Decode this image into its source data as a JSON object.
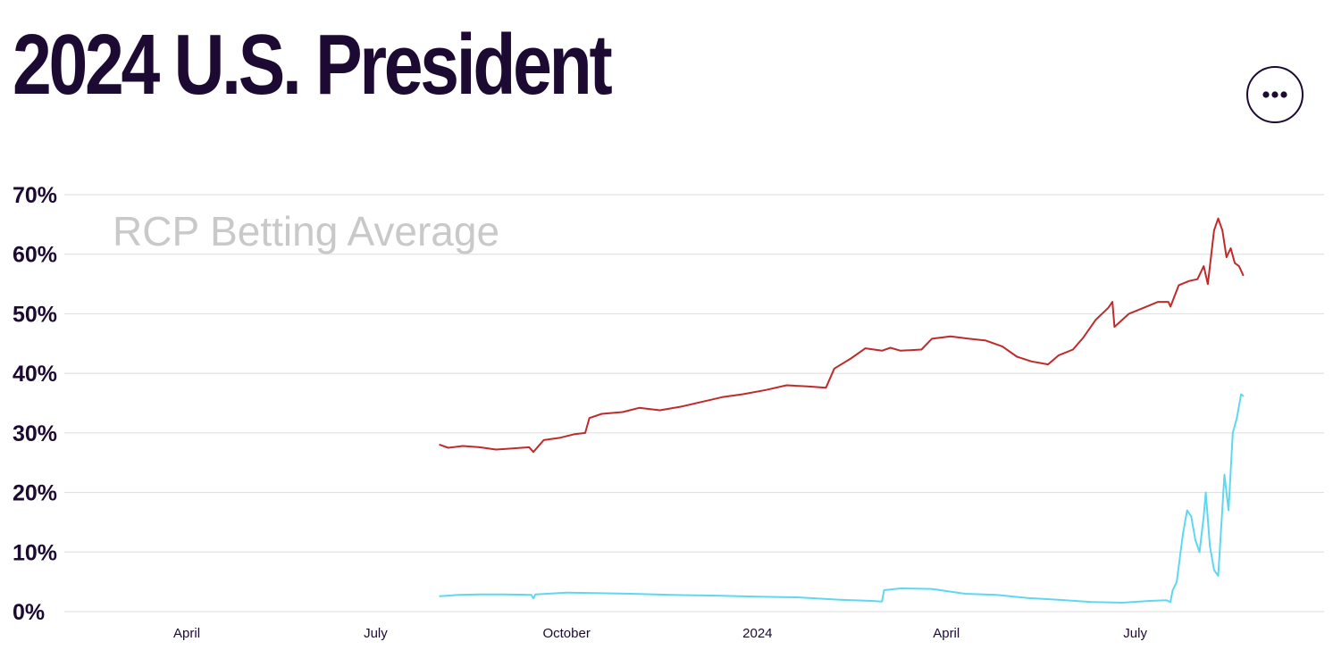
{
  "header": {
    "title": "2024 U.S. President",
    "more_button": {
      "icon": "more-horizontal-icon"
    }
  },
  "chart_data": {
    "type": "line",
    "title": "2024 U.S. President",
    "watermark": "RCP Betting Average",
    "xlabel": "",
    "ylabel": "",
    "ylim": [
      0,
      70
    ],
    "y_ticks": [
      {
        "value": 0,
        "label": "0%"
      },
      {
        "value": 10,
        "label": "10%"
      },
      {
        "value": 20,
        "label": "20%"
      },
      {
        "value": 30,
        "label": "30%"
      },
      {
        "value": 40,
        "label": "40%"
      },
      {
        "value": 50,
        "label": "50%"
      },
      {
        "value": 60,
        "label": "60%"
      },
      {
        "value": 70,
        "label": "70%"
      }
    ],
    "x_range": [
      "2023-02-01",
      "2024-09-30"
    ],
    "x_ticks": [
      {
        "date": "2023-04-01",
        "label": "April"
      },
      {
        "date": "2023-07-01",
        "label": "July"
      },
      {
        "date": "2023-10-01",
        "label": "October"
      },
      {
        "date": "2024-01-01",
        "label": "2024"
      },
      {
        "date": "2024-04-01",
        "label": "April"
      },
      {
        "date": "2024-07-01",
        "label": "July"
      }
    ],
    "grid": true,
    "series": [
      {
        "name": "Red series",
        "color": "#bf2b2b",
        "points": [
          [
            "2023-08-01",
            28.0
          ],
          [
            "2023-08-05",
            27.5
          ],
          [
            "2023-08-12",
            27.8
          ],
          [
            "2023-08-20",
            27.6
          ],
          [
            "2023-08-28",
            27.2
          ],
          [
            "2023-09-05",
            27.4
          ],
          [
            "2023-09-13",
            27.6
          ],
          [
            "2023-09-15",
            26.8
          ],
          [
            "2023-09-20",
            28.8
          ],
          [
            "2023-09-28",
            29.2
          ],
          [
            "2023-10-05",
            29.8
          ],
          [
            "2023-10-10",
            30.0
          ],
          [
            "2023-10-12",
            32.5
          ],
          [
            "2023-10-18",
            33.2
          ],
          [
            "2023-10-28",
            33.5
          ],
          [
            "2023-11-05",
            34.2
          ],
          [
            "2023-11-15",
            33.8
          ],
          [
            "2023-11-25",
            34.4
          ],
          [
            "2023-12-05",
            35.2
          ],
          [
            "2023-12-15",
            36.0
          ],
          [
            "2023-12-25",
            36.5
          ],
          [
            "2024-01-05",
            37.2
          ],
          [
            "2024-01-15",
            38.0
          ],
          [
            "2024-01-25",
            37.8
          ],
          [
            "2024-02-03",
            37.6
          ],
          [
            "2024-02-07",
            40.8
          ],
          [
            "2024-02-15",
            42.5
          ],
          [
            "2024-02-22",
            44.2
          ],
          [
            "2024-03-01",
            43.8
          ],
          [
            "2024-03-05",
            44.3
          ],
          [
            "2024-03-10",
            43.8
          ],
          [
            "2024-03-20",
            44.0
          ],
          [
            "2024-03-25",
            45.8
          ],
          [
            "2024-04-03",
            46.2
          ],
          [
            "2024-04-12",
            45.8
          ],
          [
            "2024-04-20",
            45.5
          ],
          [
            "2024-04-28",
            44.5
          ],
          [
            "2024-05-05",
            42.8
          ],
          [
            "2024-05-12",
            42.0
          ],
          [
            "2024-05-20",
            41.5
          ],
          [
            "2024-05-25",
            43.0
          ],
          [
            "2024-06-01",
            44.0
          ],
          [
            "2024-06-06",
            46.0
          ],
          [
            "2024-06-12",
            49.0
          ],
          [
            "2024-06-18",
            51.0
          ],
          [
            "2024-06-20",
            52.0
          ],
          [
            "2024-06-21",
            47.8
          ],
          [
            "2024-06-28",
            50.0
          ],
          [
            "2024-07-05",
            51.0
          ],
          [
            "2024-07-12",
            52.0
          ],
          [
            "2024-07-17",
            52.0
          ],
          [
            "2024-07-18",
            51.2
          ],
          [
            "2024-07-22",
            54.8
          ],
          [
            "2024-07-27",
            55.5
          ],
          [
            "2024-07-31",
            55.8
          ],
          [
            "2024-08-03",
            58.0
          ],
          [
            "2024-08-05",
            55.0
          ],
          [
            "2024-08-08",
            64.0
          ],
          [
            "2024-08-10",
            66.0
          ],
          [
            "2024-08-12",
            64.0
          ],
          [
            "2024-08-14",
            59.5
          ],
          [
            "2024-08-16",
            61.0
          ],
          [
            "2024-08-18",
            58.5
          ],
          [
            "2024-08-20",
            58.0
          ],
          [
            "2024-08-22",
            56.5
          ]
        ]
      },
      {
        "name": "Blue series",
        "color": "#5ed8f0",
        "points": [
          [
            "2023-08-01",
            2.6
          ],
          [
            "2023-08-10",
            2.8
          ],
          [
            "2023-08-20",
            2.9
          ],
          [
            "2023-09-01",
            2.9
          ],
          [
            "2023-09-14",
            2.8
          ],
          [
            "2023-09-15",
            2.2
          ],
          [
            "2023-09-16",
            2.9
          ],
          [
            "2023-10-01",
            3.2
          ],
          [
            "2023-10-15",
            3.1
          ],
          [
            "2023-11-01",
            3.0
          ],
          [
            "2023-11-20",
            2.8
          ],
          [
            "2023-12-10",
            2.7
          ],
          [
            "2024-01-01",
            2.5
          ],
          [
            "2024-01-20",
            2.4
          ],
          [
            "2024-02-10",
            2.0
          ],
          [
            "2024-02-25",
            1.8
          ],
          [
            "2024-03-01",
            1.7
          ],
          [
            "2024-03-02",
            3.6
          ],
          [
            "2024-03-10",
            3.9
          ],
          [
            "2024-03-25",
            3.8
          ],
          [
            "2024-04-10",
            3.0
          ],
          [
            "2024-04-25",
            2.8
          ],
          [
            "2024-05-10",
            2.3
          ],
          [
            "2024-05-25",
            2.0
          ],
          [
            "2024-06-10",
            1.6
          ],
          [
            "2024-06-25",
            1.5
          ],
          [
            "2024-07-08",
            1.8
          ],
          [
            "2024-07-16",
            1.9
          ],
          [
            "2024-07-18",
            1.6
          ],
          [
            "2024-07-19",
            3.5
          ],
          [
            "2024-07-21",
            5.0
          ],
          [
            "2024-07-24",
            13.0
          ],
          [
            "2024-07-26",
            17.0
          ],
          [
            "2024-07-28",
            16.0
          ],
          [
            "2024-07-30",
            12.0
          ],
          [
            "2024-08-01",
            10.0
          ],
          [
            "2024-08-03",
            16.0
          ],
          [
            "2024-08-04",
            20.0
          ],
          [
            "2024-08-06",
            11.0
          ],
          [
            "2024-08-08",
            7.0
          ],
          [
            "2024-08-10",
            6.0
          ],
          [
            "2024-08-13",
            23.0
          ],
          [
            "2024-08-15",
            17.0
          ],
          [
            "2024-08-17",
            30.0
          ],
          [
            "2024-08-19",
            32.5
          ],
          [
            "2024-08-21",
            36.5
          ],
          [
            "2024-08-22",
            36.2
          ]
        ]
      }
    ]
  }
}
